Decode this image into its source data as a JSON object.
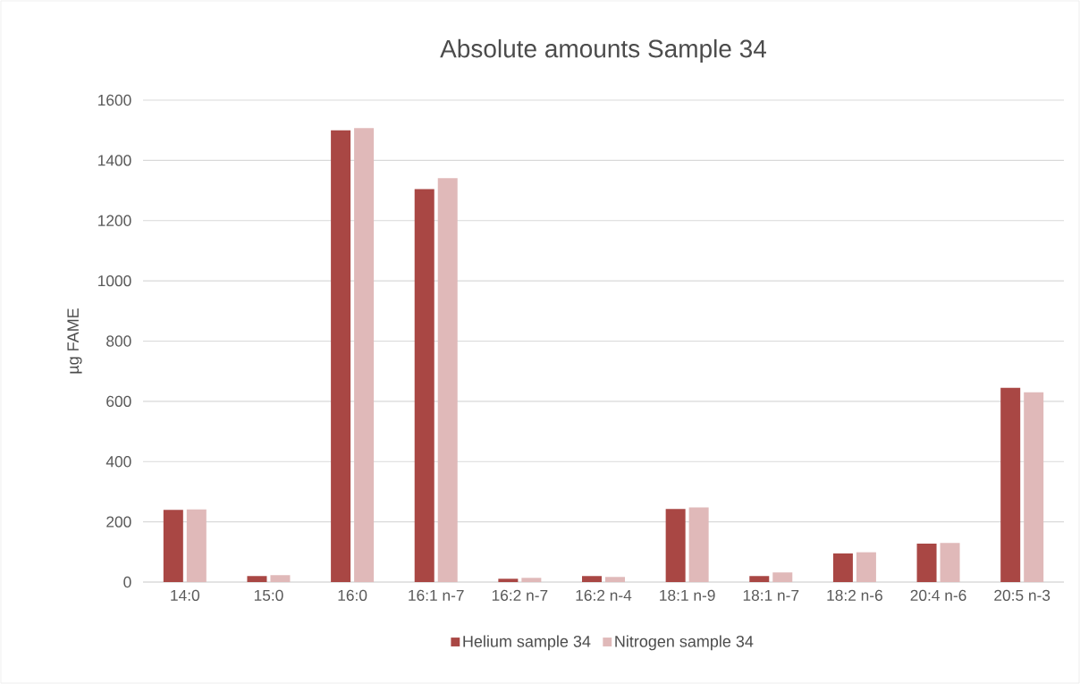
{
  "chart_data": {
    "type": "bar",
    "title": "Absolute amounts Sample 34",
    "ylabel": "µg FAME",
    "categories": [
      "14:0",
      "15:0",
      "16:0",
      "16:1 n-7",
      "16:2 n-7",
      "16:2 n-4",
      "18:1 n-9",
      "18:1 n-7",
      "18:2 n-6",
      "20:4 n-6",
      "20:5 n-3"
    ],
    "series": [
      {
        "name": "Helium sample 34",
        "color": "#a94744",
        "values": [
          240,
          20,
          1500,
          1305,
          11,
          20,
          243,
          20,
          95,
          128,
          645
        ]
      },
      {
        "name": "Nitrogen sample 34",
        "color": "#e0b9b9",
        "values": [
          241,
          23,
          1507,
          1341,
          14,
          17,
          248,
          32,
          99,
          130,
          630
        ]
      }
    ],
    "ylim": [
      0,
      1600
    ],
    "yticks": [
      0,
      200,
      400,
      600,
      800,
      1000,
      1200,
      1400,
      1600
    ],
    "grid": "y",
    "legend": "bottom"
  }
}
